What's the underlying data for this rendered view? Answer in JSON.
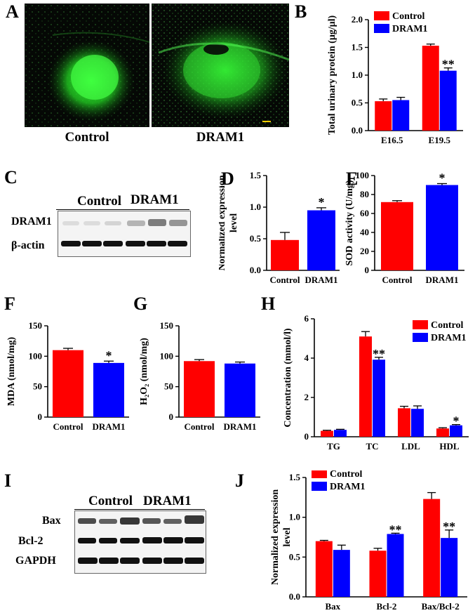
{
  "panels": {
    "A": {
      "letter": "A",
      "labels": [
        "Control",
        "DRAM1"
      ]
    },
    "B": {
      "letter": "B"
    },
    "C": {
      "letter": "C",
      "groups": [
        "Control",
        "DRAM1"
      ],
      "rows": [
        "DRAM1",
        "β-actin"
      ]
    },
    "D": {
      "letter": "D"
    },
    "E": {
      "letter": "E"
    },
    "F": {
      "letter": "F"
    },
    "G": {
      "letter": "G"
    },
    "H": {
      "letter": "H"
    },
    "I": {
      "letter": "I",
      "groups": [
        "Control",
        "DRAM1"
      ],
      "rows": [
        "Bax",
        "Bcl-2",
        "GAPDH"
      ]
    },
    "J": {
      "letter": "J"
    }
  },
  "colors": {
    "control": "#ff0000",
    "dram1": "#0000ff",
    "fluor": "#22dd22"
  },
  "chart_data": [
    {
      "id": "B",
      "type": "bar",
      "categories": [
        "E16.5",
        "E19.5"
      ],
      "series": [
        {
          "name": "Control",
          "values": [
            0.53,
            1.53
          ],
          "errors": [
            0.04,
            0.03
          ]
        },
        {
          "name": "DRAM1",
          "values": [
            0.55,
            1.08
          ],
          "errors": [
            0.05,
            0.05
          ]
        }
      ],
      "ylabel": "Total urinary protein (μg/μl)",
      "ylim": [
        0,
        2.0
      ],
      "yticks": [
        "0.0",
        "0.5",
        "1.0",
        "1.5",
        "2.0"
      ],
      "legend": "top-left",
      "annotations": [
        {
          "category": 1,
          "series": 1,
          "text": "**"
        }
      ]
    },
    {
      "id": "D",
      "type": "bar",
      "categories": [
        "Control",
        "DRAM1"
      ],
      "values": [
        0.48,
        0.95
      ],
      "errors": [
        0.12,
        0.04
      ],
      "ylabel": "Normalized expression level",
      "ylim": [
        0,
        1.5
      ],
      "yticks": [
        "0.0",
        "0.5",
        "1.0",
        "1.5"
      ],
      "annotations": [
        {
          "category": 1,
          "text": "*"
        }
      ]
    },
    {
      "id": "E",
      "type": "bar",
      "categories": [
        "Control",
        "DRAM1"
      ],
      "values": [
        72,
        90
      ],
      "errors": [
        1.5,
        1.5
      ],
      "ylabel": "SOD activity (U/mg)",
      "ylim": [
        0,
        100
      ],
      "yticks": [
        "0",
        "20",
        "40",
        "60",
        "80",
        "100"
      ],
      "annotations": [
        {
          "category": 1,
          "text": "*"
        }
      ]
    },
    {
      "id": "F",
      "type": "bar",
      "categories": [
        "Control",
        "DRAM1"
      ],
      "values": [
        110,
        89
      ],
      "errors": [
        3,
        3
      ],
      "ylabel": "MDA (nmol/mg)",
      "ylim": [
        0,
        150
      ],
      "yticks": [
        "0",
        "50",
        "100",
        "150"
      ],
      "annotations": [
        {
          "category": 1,
          "text": "*"
        }
      ]
    },
    {
      "id": "G",
      "type": "bar",
      "categories": [
        "Control",
        "DRAM1"
      ],
      "values": [
        92,
        88
      ],
      "errors": [
        2.5,
        2.5
      ],
      "ylabel": "H₂O₂ (nmol/mg)",
      "ylim": [
        0,
        150
      ],
      "yticks": [
        "0",
        "50",
        "100",
        "150"
      ],
      "annotations": []
    },
    {
      "id": "H",
      "type": "bar",
      "categories": [
        "TG",
        "TC",
        "LDL",
        "HDL"
      ],
      "series": [
        {
          "name": "Control",
          "values": [
            0.3,
            5.1,
            1.45,
            0.42
          ],
          "errors": [
            0.03,
            0.25,
            0.1,
            0.04
          ]
        },
        {
          "name": "DRAM1",
          "values": [
            0.35,
            3.92,
            1.42,
            0.58
          ],
          "errors": [
            0.03,
            0.12,
            0.15,
            0.04
          ]
        }
      ],
      "ylabel": "Concentration (mmol/l)",
      "ylim": [
        0,
        6
      ],
      "yticks": [
        "0",
        "2",
        "4",
        "6"
      ],
      "legend": "top-right",
      "annotations": [
        {
          "category": 1,
          "series": 1,
          "text": "**"
        },
        {
          "category": 3,
          "series": 1,
          "text": "*"
        }
      ]
    },
    {
      "id": "J",
      "type": "bar",
      "categories": [
        "Bax",
        "Bcl-2",
        "Bax/Bcl-2"
      ],
      "series": [
        {
          "name": "Control",
          "values": [
            0.7,
            0.58,
            1.23
          ],
          "errors": [
            0.01,
            0.03,
            0.08
          ]
        },
        {
          "name": "DRAM1",
          "values": [
            0.59,
            0.79,
            0.74
          ],
          "errors": [
            0.06,
            0.01,
            0.1
          ]
        }
      ],
      "ylabel": "Normalized expression level",
      "ylim": [
        0,
        1.5
      ],
      "yticks": [
        "0.0",
        "0.5",
        "1.0",
        "1.5"
      ],
      "legend": "top-left",
      "annotations": [
        {
          "category": 1,
          "series": 1,
          "text": "**"
        },
        {
          "category": 2,
          "series": 1,
          "text": "**"
        }
      ]
    }
  ]
}
